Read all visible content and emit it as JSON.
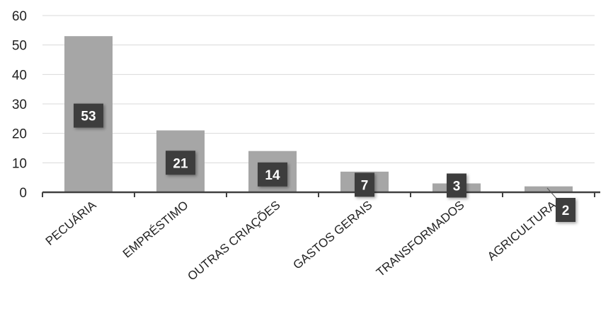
{
  "chart_data": {
    "type": "bar",
    "categories": [
      "PECUÁRIA",
      "EMPRÉSTIMO",
      "OUTRAS CRIAÇÕES",
      "GASTOS GERAIS",
      "TRANSFORMADOS",
      "AGRICULTURA"
    ],
    "values": [
      53,
      21,
      14,
      7,
      3,
      2
    ],
    "data_labels": [
      "53",
      "21",
      "14",
      "7",
      "3",
      "2"
    ],
    "title": "",
    "xlabel": "",
    "ylabel": "",
    "ylim": [
      0,
      60
    ],
    "yticks": [
      "0",
      "10",
      "20",
      "30",
      "40",
      "50",
      "60"
    ],
    "grid": true,
    "legend": "none",
    "colors": {
      "bar": "#a6a6a6",
      "label_box": "#3d3d3d",
      "gridline": "#d9d9d9",
      "axis": "#404040"
    }
  }
}
